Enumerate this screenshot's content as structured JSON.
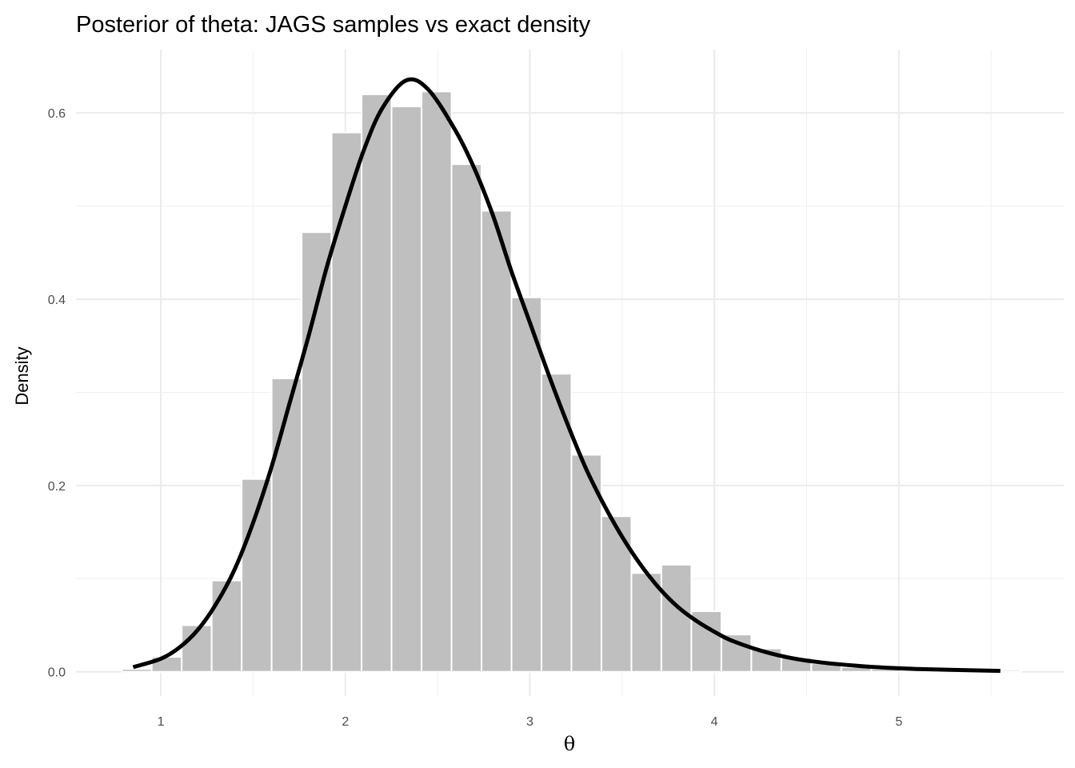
{
  "chart_data": {
    "type": "bar",
    "title": "Posterior of theta: JAGS samples vs exact density",
    "xlabel": "θ",
    "ylabel": "Density",
    "xlim": [
      0.54,
      5.894
    ],
    "ylim": [
      -0.026,
      0.668
    ],
    "xticks": [
      1,
      2,
      3,
      4,
      5
    ],
    "xtick_labels": [
      "1",
      "2",
      "3",
      "4",
      "5"
    ],
    "yticks": [
      0.0,
      0.2,
      0.4,
      0.6
    ],
    "ytick_labels": [
      "0.0",
      "0.2",
      "0.4",
      "0.6"
    ],
    "grid": true,
    "histogram": {
      "name": "JAGS samples",
      "color": "#bfbfbf",
      "edge_color": "#ffffff",
      "bin_start": 0.788,
      "bin_width": 0.1625,
      "values": [
        0.003,
        0.016,
        0.05,
        0.098,
        0.207,
        0.315,
        0.472,
        0.579,
        0.62,
        0.607,
        0.623,
        0.545,
        0.495,
        0.402,
        0.32,
        0.233,
        0.167,
        0.106,
        0.115,
        0.065,
        0.04,
        0.025,
        0.015,
        0.009,
        0.005,
        0.003,
        0.002,
        0.001,
        0.001,
        0.002
      ]
    },
    "density_curve": {
      "name": "exact density",
      "color": "#000000",
      "x": [
        0.85,
        1.0,
        1.1,
        1.2,
        1.3,
        1.4,
        1.5,
        1.6,
        1.7,
        1.8,
        1.9,
        2.0,
        2.1,
        2.2,
        2.33,
        2.45,
        2.6,
        2.7,
        2.8,
        2.9,
        3.0,
        3.1,
        3.2,
        3.3,
        3.4,
        3.5,
        3.6,
        3.7,
        3.8,
        3.9,
        4.0,
        4.1,
        4.3,
        4.5,
        4.8,
        5.1,
        5.55
      ],
      "y": [
        0.005,
        0.014,
        0.026,
        0.045,
        0.073,
        0.11,
        0.16,
        0.22,
        0.29,
        0.36,
        0.435,
        0.5,
        0.56,
        0.605,
        0.635,
        0.625,
        0.58,
        0.54,
        0.49,
        0.43,
        0.375,
        0.32,
        0.268,
        0.22,
        0.18,
        0.145,
        0.115,
        0.09,
        0.07,
        0.055,
        0.043,
        0.033,
        0.02,
        0.012,
        0.006,
        0.003,
        0.001
      ]
    }
  }
}
